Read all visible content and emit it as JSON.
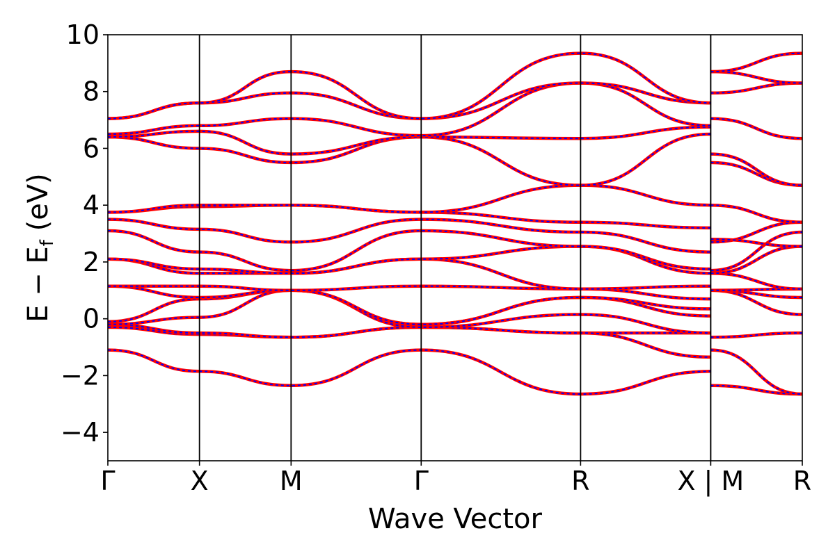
{
  "chart_data": {
    "type": "line",
    "xlabel": "Wave Vector",
    "ylabel": {
      "main": "E − E",
      "sub": "f",
      "unit": " (eV)"
    },
    "ylim": [
      -5,
      10
    ],
    "xlim": [
      0,
      5.81
    ],
    "yticks": [
      -4,
      -2,
      0,
      2,
      4,
      6,
      8,
      10
    ],
    "ytick_labels": [
      "−4",
      "−2",
      "0",
      "2",
      "4",
      "6",
      "8",
      "10"
    ],
    "kpoint_positions": [
      0,
      0.5,
      1.0,
      1.71,
      2.58,
      3.29,
      3.29,
      3.79
    ],
    "kpoint_labels": [
      "Γ",
      "X",
      "M",
      "Γ",
      "R",
      "X | M",
      "R"
    ],
    "kpoint_label_positions": [
      0,
      0.5,
      1.0,
      1.71,
      2.58,
      3.29,
      3.79
    ],
    "grid": false,
    "line_colors": {
      "solid": "#ff0000",
      "dashed": "#0000ff"
    },
    "series": [
      {
        "x": [
          0,
          0.5,
          1.0,
          1.71,
          2.58,
          3.29
        ],
        "y": [
          -1.1,
          -1.85,
          -2.35,
          -1.1,
          -2.65,
          -1.85
        ]
      },
      {
        "x": [
          0,
          0.5,
          1.0,
          1.71,
          2.58,
          3.29
        ],
        "y": [
          -0.3,
          -0.55,
          -0.65,
          -0.3,
          -0.5,
          -0.5
        ]
      },
      {
        "x": [
          0,
          0.5,
          1.0,
          1.71,
          2.58,
          3.29
        ],
        "y": [
          -0.2,
          -0.5,
          -0.65,
          -0.3,
          -0.5,
          -1.35
        ]
      },
      {
        "x": [
          0,
          0.5,
          1.0,
          1.71,
          2.58,
          3.29
        ],
        "y": [
          -0.2,
          0.05,
          1.0,
          -0.3,
          0.15,
          -0.5
        ]
      },
      {
        "x": [
          0,
          0.5,
          1.0,
          1.71,
          2.58,
          3.29
        ],
        "y": [
          -0.1,
          0.7,
          1.0,
          -0.2,
          0.75,
          0.1
        ]
      },
      {
        "x": [
          0,
          0.5,
          1.0,
          1.71,
          2.58,
          3.29
        ],
        "y": [
          1.15,
          0.75,
          1.0,
          -0.2,
          0.75,
          0.35
        ]
      },
      {
        "x": [
          0,
          0.5,
          1.0,
          1.71,
          2.58,
          3.29
        ],
        "y": [
          1.15,
          1.15,
          1.0,
          1.15,
          1.05,
          0.7
        ]
      },
      {
        "x": [
          0,
          0.5,
          1.0,
          1.71,
          2.58,
          3.29
        ],
        "y": [
          2.1,
          1.6,
          1.6,
          2.1,
          1.05,
          1.15
        ]
      },
      {
        "x": [
          0,
          0.5,
          1.0,
          1.71,
          2.58,
          3.29
        ],
        "y": [
          2.1,
          1.75,
          1.6,
          2.1,
          2.55,
          1.6
        ]
      },
      {
        "x": [
          0,
          0.5,
          1.0,
          1.71,
          2.58,
          3.29
        ],
        "y": [
          3.1,
          2.35,
          1.7,
          3.1,
          2.55,
          1.75
        ]
      },
      {
        "x": [
          0,
          0.5,
          1.0,
          1.71,
          2.58,
          3.29
        ],
        "y": [
          3.5,
          3.15,
          2.7,
          3.5,
          3.05,
          2.35
        ]
      },
      {
        "x": [
          0,
          0.5,
          1.0,
          1.71,
          2.58,
          3.29
        ],
        "y": [
          3.75,
          3.95,
          4.0,
          3.75,
          3.4,
          3.2
        ]
      },
      {
        "x": [
          0,
          0.5,
          1.0,
          1.71,
          2.58,
          3.29
        ],
        "y": [
          3.75,
          4.0,
          4.0,
          3.75,
          4.7,
          4.0
        ]
      },
      {
        "x": [
          0,
          0.5,
          1.0,
          1.71,
          2.58,
          3.29
        ],
        "y": [
          6.4,
          6.0,
          5.5,
          6.4,
          4.7,
          6.5
        ]
      },
      {
        "x": [
          0,
          0.5,
          1.0,
          1.71,
          2.58,
          3.29
        ],
        "y": [
          6.4,
          6.6,
          5.8,
          6.4,
          6.35,
          6.75
        ]
      },
      {
        "x": [
          0,
          0.5,
          1.0,
          1.71,
          2.58,
          3.29
        ],
        "y": [
          6.5,
          6.8,
          7.05,
          6.45,
          8.3,
          6.8
        ]
      },
      {
        "x": [
          0,
          0.5,
          1.0,
          1.71,
          2.58,
          3.29
        ],
        "y": [
          7.05,
          7.6,
          7.95,
          7.05,
          8.3,
          7.6
        ]
      },
      {
        "x": [
          0,
          0.5,
          1.0,
          1.71,
          2.58,
          3.29
        ],
        "y": [
          7.05,
          7.6,
          8.7,
          7.05,
          9.35,
          7.6
        ]
      },
      {
        "x": [
          3.29,
          3.79
        ],
        "y": [
          -2.35,
          -2.65
        ]
      },
      {
        "x": [
          3.29,
          3.79
        ],
        "y": [
          -0.65,
          -0.5
        ]
      },
      {
        "x": [
          3.29,
          3.79
        ],
        "y": [
          -1.1,
          -2.65
        ]
      },
      {
        "x": [
          3.29,
          3.79
        ],
        "y": [
          1.0,
          0.15
        ]
      },
      {
        "x": [
          3.29,
          3.79
        ],
        "y": [
          1.0,
          0.75
        ]
      },
      {
        "x": [
          3.29,
          3.79
        ],
        "y": [
          1.0,
          1.05
        ]
      },
      {
        "x": [
          3.29,
          3.79
        ],
        "y": [
          1.6,
          1.05
        ]
      },
      {
        "x": [
          3.29,
          3.79
        ],
        "y": [
          1.6,
          2.55
        ]
      },
      {
        "x": [
          3.29,
          3.79
        ],
        "y": [
          1.7,
          3.05
        ]
      },
      {
        "x": [
          3.29,
          3.79
        ],
        "y": [
          2.7,
          3.4
        ]
      },
      {
        "x": [
          3.29,
          3.79
        ],
        "y": [
          2.8,
          2.55
        ]
      },
      {
        "x": [
          3.29,
          3.79
        ],
        "y": [
          4.0,
          3.4
        ]
      },
      {
        "x": [
          3.29,
          3.79
        ],
        "y": [
          5.5,
          4.7
        ]
      },
      {
        "x": [
          3.29,
          3.79
        ],
        "y": [
          5.8,
          4.7
        ]
      },
      {
        "x": [
          3.29,
          3.79
        ],
        "y": [
          7.05,
          6.35
        ]
      },
      {
        "x": [
          3.29,
          3.79
        ],
        "y": [
          7.95,
          8.3
        ]
      },
      {
        "x": [
          3.29,
          3.79
        ],
        "y": [
          8.7,
          8.3
        ]
      },
      {
        "x": [
          3.29,
          3.79
        ],
        "y": [
          8.7,
          9.35
        ]
      }
    ]
  }
}
